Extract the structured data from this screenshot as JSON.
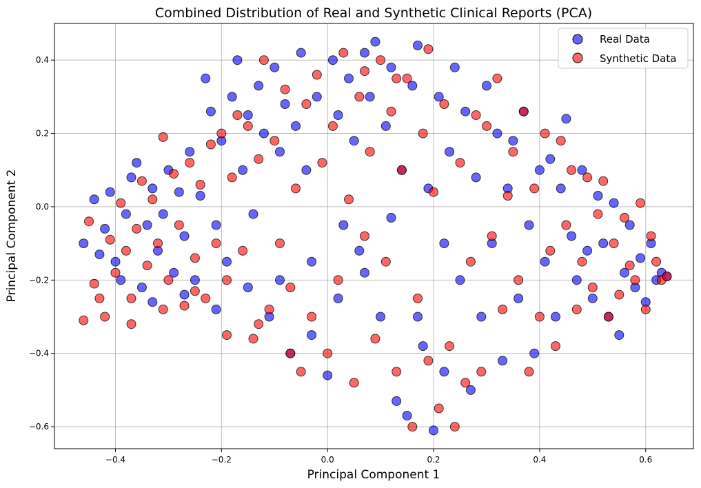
{
  "chart_data": {
    "type": "scatter",
    "title": "Combined Distribution of Real and Synthetic Clinical Reports (PCA)",
    "xlabel": "Principal Component 1",
    "ylabel": "Principal Component 2",
    "xlim": [
      -0.515,
      0.69
    ],
    "ylim": [
      -0.66,
      0.5
    ],
    "xticks": [
      -0.4,
      -0.2,
      0.0,
      0.2,
      0.4,
      0.6
    ],
    "yticks": [
      -0.6,
      -0.4,
      -0.2,
      0.0,
      0.2,
      0.4
    ],
    "xtick_labels": [
      "−0.4",
      "−0.2",
      "0.0",
      "0.2",
      "0.4",
      "0.6"
    ],
    "ytick_labels": [
      "−0.6",
      "−0.4",
      "−0.2",
      "0.0",
      "0.2",
      "0.4"
    ],
    "grid": true,
    "legend_position": "top-right",
    "series": [
      {
        "name": "Real Data",
        "color": "#0000ff",
        "edge_color": "#000000",
        "alpha": 0.6,
        "points": [
          [
            -0.46,
            -0.1
          ],
          [
            -0.44,
            0.02
          ],
          [
            -0.42,
            -0.06
          ],
          [
            -0.41,
            0.04
          ],
          [
            -0.4,
            -0.15
          ],
          [
            -0.38,
            -0.02
          ],
          [
            -0.37,
            0.08
          ],
          [
            -0.36,
            0.12
          ],
          [
            -0.35,
            -0.22
          ],
          [
            -0.34,
            -0.05
          ],
          [
            -0.33,
            0.05
          ],
          [
            -0.32,
            -0.12
          ],
          [
            -0.31,
            -0.02
          ],
          [
            -0.3,
            0.1
          ],
          [
            -0.29,
            -0.18
          ],
          [
            -0.28,
            0.04
          ],
          [
            -0.27,
            -0.08
          ],
          [
            -0.26,
            0.15
          ],
          [
            -0.25,
            -0.2
          ],
          [
            -0.24,
            0.03
          ],
          [
            -0.23,
            0.35
          ],
          [
            -0.22,
            0.26
          ],
          [
            -0.21,
            -0.05
          ],
          [
            -0.2,
            0.18
          ],
          [
            -0.19,
            -0.15
          ],
          [
            -0.18,
            0.3
          ],
          [
            -0.17,
            0.4
          ],
          [
            -0.16,
            0.1
          ],
          [
            -0.15,
            0.25
          ],
          [
            -0.14,
            -0.02
          ],
          [
            -0.13,
            0.33
          ],
          [
            -0.12,
            0.2
          ],
          [
            -0.11,
            -0.3
          ],
          [
            -0.1,
            0.38
          ],
          [
            -0.09,
            0.15
          ],
          [
            -0.08,
            0.28
          ],
          [
            -0.07,
            -0.4
          ],
          [
            -0.06,
            0.22
          ],
          [
            -0.05,
            0.42
          ],
          [
            -0.04,
            0.1
          ],
          [
            -0.03,
            -0.35
          ],
          [
            -0.02,
            0.3
          ],
          [
            0.0,
            -0.46
          ],
          [
            0.01,
            0.4
          ],
          [
            0.02,
            0.25
          ],
          [
            0.03,
            -0.05
          ],
          [
            0.04,
            0.35
          ],
          [
            0.05,
            0.18
          ],
          [
            0.06,
            -0.12
          ],
          [
            0.07,
            0.42
          ],
          [
            0.08,
            0.3
          ],
          [
            0.09,
            0.45
          ],
          [
            0.1,
            -0.3
          ],
          [
            0.11,
            0.22
          ],
          [
            0.12,
            0.38
          ],
          [
            0.13,
            -0.53
          ],
          [
            0.14,
            0.1
          ],
          [
            0.15,
            -0.57
          ],
          [
            0.16,
            0.33
          ],
          [
            0.17,
            0.44
          ],
          [
            0.18,
            -0.38
          ],
          [
            0.19,
            0.05
          ],
          [
            0.2,
            -0.61
          ],
          [
            0.21,
            0.3
          ],
          [
            0.22,
            -0.45
          ],
          [
            0.23,
            0.15
          ],
          [
            0.24,
            0.38
          ],
          [
            0.25,
            -0.2
          ],
          [
            0.26,
            0.26
          ],
          [
            0.27,
            -0.5
          ],
          [
            0.28,
            0.08
          ],
          [
            0.29,
            -0.3
          ],
          [
            0.3,
            0.33
          ],
          [
            0.31,
            -0.1
          ],
          [
            0.32,
            0.2
          ],
          [
            0.33,
            -0.42
          ],
          [
            0.34,
            0.05
          ],
          [
            0.35,
            0.18
          ],
          [
            0.36,
            -0.25
          ],
          [
            0.37,
            0.26
          ],
          [
            0.38,
            -0.05
          ],
          [
            0.39,
            -0.4
          ],
          [
            0.4,
            0.1
          ],
          [
            0.41,
            -0.15
          ],
          [
            0.42,
            0.13
          ],
          [
            0.43,
            -0.3
          ],
          [
            0.44,
            0.05
          ],
          [
            0.45,
            0.24
          ],
          [
            0.46,
            -0.08
          ],
          [
            0.47,
            -0.2
          ],
          [
            0.48,
            0.1
          ],
          [
            0.49,
            -0.12
          ],
          [
            0.5,
            -0.25
          ],
          [
            0.51,
            0.03
          ],
          [
            0.52,
            -0.1
          ],
          [
            0.53,
            -0.3
          ],
          [
            0.54,
            0.01
          ],
          [
            0.55,
            -0.35
          ],
          [
            0.56,
            -0.18
          ],
          [
            0.57,
            -0.05
          ],
          [
            0.58,
            -0.22
          ],
          [
            0.59,
            -0.14
          ],
          [
            0.6,
            -0.26
          ],
          [
            0.61,
            -0.1
          ],
          [
            0.62,
            -0.2
          ],
          [
            0.63,
            -0.18
          ],
          [
            0.64,
            -0.19
          ],
          [
            -0.43,
            -0.13
          ],
          [
            -0.39,
            -0.2
          ],
          [
            -0.33,
            -0.26
          ],
          [
            -0.27,
            -0.24
          ],
          [
            -0.21,
            -0.28
          ],
          [
            -0.15,
            -0.22
          ],
          [
            -0.09,
            -0.2
          ],
          [
            -0.03,
            -0.15
          ],
          [
            0.02,
            -0.25
          ],
          [
            0.07,
            -0.18
          ],
          [
            0.12,
            -0.03
          ],
          [
            0.17,
            -0.3
          ],
          [
            0.22,
            -0.1
          ]
        ]
      },
      {
        "name": "Synthetic Data",
        "color": "#ff0000",
        "edge_color": "#000000",
        "alpha": 0.6,
        "points": [
          [
            -0.46,
            -0.31
          ],
          [
            -0.45,
            -0.04
          ],
          [
            -0.44,
            -0.21
          ],
          [
            -0.42,
            -0.3
          ],
          [
            -0.41,
            -0.09
          ],
          [
            -0.4,
            -0.18
          ],
          [
            -0.39,
            0.01
          ],
          [
            -0.38,
            -0.12
          ],
          [
            -0.37,
            -0.25
          ],
          [
            -0.36,
            -0.06
          ],
          [
            -0.35,
            0.07
          ],
          [
            -0.34,
            -0.16
          ],
          [
            -0.33,
            0.02
          ],
          [
            -0.32,
            -0.1
          ],
          [
            -0.31,
            0.19
          ],
          [
            -0.3,
            -0.2
          ],
          [
            -0.29,
            0.09
          ],
          [
            -0.28,
            -0.05
          ],
          [
            -0.27,
            -0.27
          ],
          [
            -0.26,
            0.12
          ],
          [
            -0.25,
            -0.14
          ],
          [
            -0.24,
            0.06
          ],
          [
            -0.23,
            -0.25
          ],
          [
            -0.22,
            0.17
          ],
          [
            -0.21,
            -0.1
          ],
          [
            -0.2,
            0.2
          ],
          [
            -0.19,
            -0.2
          ],
          [
            -0.18,
            0.08
          ],
          [
            -0.17,
            0.25
          ],
          [
            -0.16,
            -0.12
          ],
          [
            -0.15,
            0.22
          ],
          [
            -0.14,
            -0.36
          ],
          [
            -0.13,
            0.13
          ],
          [
            -0.12,
            0.4
          ],
          [
            -0.11,
            -0.28
          ],
          [
            -0.1,
            0.18
          ],
          [
            -0.09,
            -0.1
          ],
          [
            -0.08,
            0.32
          ],
          [
            -0.07,
            -0.22
          ],
          [
            -0.06,
            0.05
          ],
          [
            -0.05,
            -0.45
          ],
          [
            -0.04,
            0.28
          ],
          [
            -0.03,
            -0.3
          ],
          [
            -0.02,
            0.36
          ],
          [
            -0.01,
            0.12
          ],
          [
            0.0,
            -0.4
          ],
          [
            0.01,
            0.22
          ],
          [
            0.02,
            -0.2
          ],
          [
            0.03,
            0.42
          ],
          [
            0.04,
            0.02
          ],
          [
            0.05,
            -0.48
          ],
          [
            0.06,
            0.3
          ],
          [
            0.07,
            -0.08
          ],
          [
            0.08,
            0.15
          ],
          [
            0.09,
            -0.36
          ],
          [
            0.1,
            0.4
          ],
          [
            0.11,
            -0.15
          ],
          [
            0.12,
            0.26
          ],
          [
            0.13,
            -0.45
          ],
          [
            0.14,
            0.1
          ],
          [
            0.15,
            0.35
          ],
          [
            0.16,
            -0.6
          ],
          [
            0.17,
            -0.25
          ],
          [
            0.18,
            0.2
          ],
          [
            0.19,
            -0.42
          ],
          [
            0.2,
            0.04
          ],
          [
            0.21,
            -0.55
          ],
          [
            0.22,
            0.28
          ],
          [
            0.23,
            -0.38
          ],
          [
            0.24,
            -0.6
          ],
          [
            0.25,
            0.12
          ],
          [
            0.26,
            -0.48
          ],
          [
            0.27,
            -0.15
          ],
          [
            0.28,
            0.25
          ],
          [
            0.29,
            -0.45
          ],
          [
            0.3,
            0.22
          ],
          [
            0.31,
            -0.08
          ],
          [
            0.32,
            0.35
          ],
          [
            0.33,
            -0.28
          ],
          [
            0.34,
            0.03
          ],
          [
            0.35,
            0.15
          ],
          [
            0.36,
            -0.2
          ],
          [
            0.37,
            0.26
          ],
          [
            0.38,
            -0.45
          ],
          [
            0.39,
            0.05
          ],
          [
            0.4,
            -0.3
          ],
          [
            0.41,
            0.2
          ],
          [
            0.42,
            -0.12
          ],
          [
            0.43,
            -0.38
          ],
          [
            0.44,
            0.18
          ],
          [
            0.45,
            -0.05
          ],
          [
            0.46,
            0.1
          ],
          [
            0.47,
            -0.28
          ],
          [
            0.48,
            -0.15
          ],
          [
            0.49,
            0.08
          ],
          [
            0.5,
            -0.22
          ],
          [
            0.51,
            -0.02
          ],
          [
            0.52,
            0.07
          ],
          [
            0.53,
            -0.3
          ],
          [
            0.54,
            -0.1
          ],
          [
            0.55,
            -0.24
          ],
          [
            0.56,
            -0.03
          ],
          [
            0.57,
            -0.16
          ],
          [
            0.58,
            -0.2
          ],
          [
            0.59,
            0.01
          ],
          [
            0.6,
            -0.28
          ],
          [
            0.61,
            -0.08
          ],
          [
            0.62,
            -0.15
          ],
          [
            0.63,
            -0.2
          ],
          [
            0.64,
            -0.19
          ],
          [
            -0.43,
            -0.25
          ],
          [
            -0.37,
            -0.32
          ],
          [
            -0.31,
            -0.28
          ],
          [
            -0.25,
            -0.23
          ],
          [
            -0.19,
            -0.35
          ],
          [
            -0.13,
            -0.32
          ],
          [
            -0.07,
            -0.4
          ],
          [
            0.07,
            0.37
          ],
          [
            0.13,
            0.35
          ],
          [
            0.19,
            0.43
          ]
        ]
      }
    ]
  }
}
